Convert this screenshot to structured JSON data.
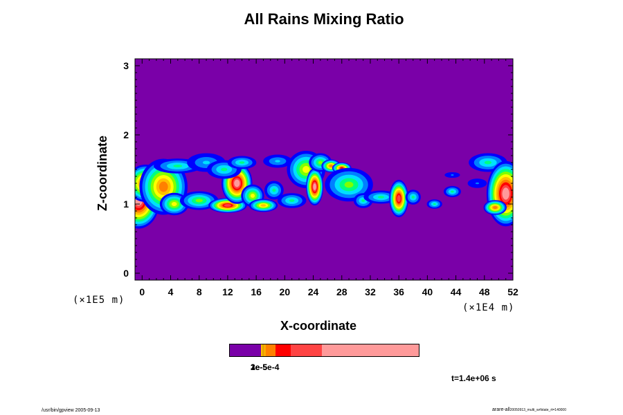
{
  "chart_data": {
    "type": "heatmap",
    "title": "All Rains Mixing Ratio",
    "xlabel": "X-coordinate",
    "ylabel": "Z-coordinate",
    "x_scale_note": "(×1E4 m)",
    "z_scale_note": "(×1E5 m)",
    "xlim": [
      -1,
      52
    ],
    "ylim": [
      -0.1,
      3.1
    ],
    "x_ticks": [
      "0",
      "4",
      "8",
      "12",
      "16",
      "20",
      "24",
      "28",
      "32",
      "36",
      "40",
      "44",
      "48",
      "52"
    ],
    "y_ticks": [
      "0",
      "1",
      "2",
      "3"
    ],
    "grid": false,
    "colorscale": [
      "#7a00a8",
      "#0000ff",
      "#0080ff",
      "#00e0ff",
      "#00ff80",
      "#80ff00",
      "#ffff00",
      "#ffc000",
      "#ff8000",
      "#ff0000",
      "#ff4040",
      "#ff9a9a"
    ],
    "colorbar": {
      "segments": [
        {
          "color": "#7a00a8",
          "fraction": 0.165
        },
        {
          "color": "#ffc000",
          "fraction": 0.007
        },
        {
          "color": "#e0a000",
          "fraction": 0.007
        },
        {
          "color": "#ffaa00",
          "fraction": 0.011
        },
        {
          "color": "#ff8000",
          "fraction": 0.053
        },
        {
          "color": "#ff0000",
          "fraction": 0.08
        },
        {
          "color": "#ff4444",
          "fraction": 0.165
        },
        {
          "color": "#ff9a9a",
          "fraction": 0.512
        }
      ],
      "labels": [
        "1e-5",
        "2e-5",
        "3e-5e-4"
      ]
    },
    "rain_cells": [
      {
        "x": -0.5,
        "z": 1.05,
        "rx": 2.2,
        "rz": 0.3,
        "v": 1.0
      },
      {
        "x": 0.5,
        "z": 1.3,
        "rx": 2.0,
        "rz": 0.2,
        "v": 0.8
      },
      {
        "x": 3.0,
        "z": 1.25,
        "rx": 2.5,
        "rz": 0.3,
        "v": 0.7
      },
      {
        "x": 4.5,
        "z": 1.0,
        "rx": 1.5,
        "rz": 0.12,
        "v": 0.5
      },
      {
        "x": 5.0,
        "z": 1.55,
        "rx": 2.5,
        "rz": 0.08,
        "v": 0.35
      },
      {
        "x": 8.0,
        "z": 1.05,
        "rx": 2.0,
        "rz": 0.1,
        "v": 0.45
      },
      {
        "x": 9.0,
        "z": 1.6,
        "rx": 2.0,
        "rz": 0.1,
        "v": 0.25
      },
      {
        "x": 12.0,
        "z": 0.98,
        "rx": 2.0,
        "rz": 0.08,
        "v": 0.9
      },
      {
        "x": 13.3,
        "z": 1.3,
        "rx": 1.6,
        "rz": 0.22,
        "v": 1.0
      },
      {
        "x": 11.5,
        "z": 1.5,
        "rx": 1.8,
        "rz": 0.1,
        "v": 0.4
      },
      {
        "x": 14.0,
        "z": 1.6,
        "rx": 1.5,
        "rz": 0.07,
        "v": 0.4
      },
      {
        "x": 15.5,
        "z": 1.12,
        "rx": 1.2,
        "rz": 0.12,
        "v": 0.5
      },
      {
        "x": 17.0,
        "z": 0.98,
        "rx": 1.5,
        "rz": 0.07,
        "v": 0.6
      },
      {
        "x": 18.5,
        "z": 1.2,
        "rx": 1.0,
        "rz": 0.1,
        "v": 0.4
      },
      {
        "x": 19.0,
        "z": 1.62,
        "rx": 1.5,
        "rz": 0.07,
        "v": 0.3
      },
      {
        "x": 21.0,
        "z": 1.05,
        "rx": 1.5,
        "rz": 0.08,
        "v": 0.4
      },
      {
        "x": 23.0,
        "z": 1.5,
        "rx": 2.0,
        "rz": 0.2,
        "v": 0.5
      },
      {
        "x": 24.2,
        "z": 1.25,
        "rx": 0.9,
        "rz": 0.2,
        "v": 1.0
      },
      {
        "x": 25.0,
        "z": 1.6,
        "rx": 1.2,
        "rz": 0.1,
        "v": 0.45
      },
      {
        "x": 26.5,
        "z": 1.55,
        "rx": 1.0,
        "rz": 0.07,
        "v": 0.7
      },
      {
        "x": 28.0,
        "z": 1.52,
        "rx": 1.0,
        "rz": 0.06,
        "v": 0.85
      },
      {
        "x": 29.0,
        "z": 1.28,
        "rx": 2.5,
        "rz": 0.18,
        "v": 0.45
      },
      {
        "x": 31.0,
        "z": 1.05,
        "rx": 1.0,
        "rz": 0.08,
        "v": 0.4
      },
      {
        "x": 33.5,
        "z": 1.1,
        "rx": 1.8,
        "rz": 0.07,
        "v": 0.4
      },
      {
        "x": 36.0,
        "z": 1.08,
        "rx": 1.0,
        "rz": 0.2,
        "v": 0.95
      },
      {
        "x": 38.0,
        "z": 1.1,
        "rx": 0.8,
        "rz": 0.08,
        "v": 0.35
      },
      {
        "x": 41.0,
        "z": 1.0,
        "rx": 0.8,
        "rz": 0.05,
        "v": 0.35
      },
      {
        "x": 43.5,
        "z": 1.18,
        "rx": 0.9,
        "rz": 0.06,
        "v": 0.35
      },
      {
        "x": 43.5,
        "z": 1.42,
        "rx": 0.8,
        "rz": 0.03,
        "v": 0.15
      },
      {
        "x": 47.0,
        "z": 1.3,
        "rx": 1.0,
        "rz": 0.05,
        "v": 0.2
      },
      {
        "x": 48.5,
        "z": 1.6,
        "rx": 2.0,
        "rz": 0.1,
        "v": 0.35
      },
      {
        "x": 51.0,
        "z": 1.15,
        "rx": 2.0,
        "rz": 0.35,
        "v": 1.0
      },
      {
        "x": 49.5,
        "z": 0.95,
        "rx": 1.2,
        "rz": 0.08,
        "v": 0.7
      }
    ],
    "time_label": "t=1.4e+06 s"
  },
  "footer": {
    "left": "/usr/bin/gpview 2005-09-13",
    "right_main": "arare-all",
    "right_small": "20050913_multi_wrfstate_rt=140000"
  }
}
